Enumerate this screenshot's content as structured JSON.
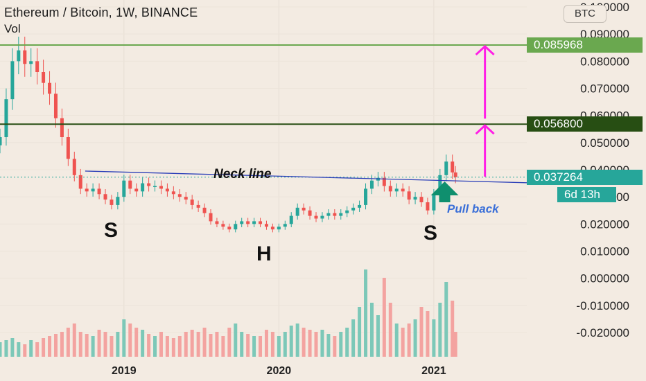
{
  "header": {
    "title": "Ethereum / Bitcoin, 1W, BINANCE",
    "sub": "Vol"
  },
  "currency_button": "BTC",
  "price_tags": [
    {
      "label": "0.085968",
      "color": "#6aa84f",
      "value": 0.085968
    },
    {
      "label": "0.056800",
      "color": "#274e13",
      "value": 0.0568
    },
    {
      "label": "0.037264",
      "color": "#26a69a",
      "value": 0.037264
    },
    {
      "label": "6d 13h",
      "color": "#26a69a"
    }
  ],
  "annotations": {
    "neckline": "Neck line",
    "pullback": "Pull back",
    "shoulder_left": "S",
    "head": "H",
    "shoulder_right": "S"
  },
  "chart_data": {
    "type": "candlestick",
    "title": "Ethereum / Bitcoin, 1W, BINANCE",
    "y_axis_ticks": [
      "0.100000",
      "0.090000",
      "0.080000",
      "0.070000",
      "0.060000",
      "0.050000",
      "0.040000",
      "0.030000",
      "0.020000",
      "0.010000",
      "0.000000",
      "-0.010000",
      "-0.020000"
    ],
    "y_tick_values": [
      0.1,
      0.09,
      0.08,
      0.07,
      0.06,
      0.05,
      0.04,
      0.03,
      0.02,
      0.01,
      0,
      -0.01,
      -0.02
    ],
    "x_axis_ticks": [
      "2019",
      "2020",
      "2021"
    ],
    "x_tick_values": [
      2019,
      2020,
      2021
    ],
    "xlim": [
      2018.2,
      2021.6
    ],
    "ylim": [
      -0.028,
      0.103
    ],
    "series": [
      {
        "name": "close",
        "points": [
          [
            2018.2,
            0.052
          ],
          [
            2018.24,
            0.066
          ],
          [
            2018.28,
            0.08
          ],
          [
            2018.32,
            0.084
          ],
          [
            2018.36,
            0.079
          ],
          [
            2018.4,
            0.08
          ],
          [
            2018.44,
            0.076
          ],
          [
            2018.48,
            0.072
          ],
          [
            2018.52,
            0.068
          ],
          [
            2018.56,
            0.059
          ],
          [
            2018.6,
            0.052
          ],
          [
            2018.64,
            0.044
          ],
          [
            2018.68,
            0.038
          ],
          [
            2018.72,
            0.033
          ],
          [
            2018.76,
            0.032
          ],
          [
            2018.8,
            0.033
          ],
          [
            2018.84,
            0.031
          ],
          [
            2018.88,
            0.029
          ],
          [
            2018.92,
            0.027
          ],
          [
            2018.96,
            0.03
          ],
          [
            2019.0,
            0.036
          ],
          [
            2019.04,
            0.033
          ],
          [
            2019.08,
            0.032
          ],
          [
            2019.12,
            0.035
          ],
          [
            2019.16,
            0.034
          ],
          [
            2019.2,
            0.034
          ],
          [
            2019.24,
            0.033
          ],
          [
            2019.28,
            0.032
          ],
          [
            2019.32,
            0.031
          ],
          [
            2019.36,
            0.03
          ],
          [
            2019.4,
            0.029
          ],
          [
            2019.44,
            0.027
          ],
          [
            2019.48,
            0.026
          ],
          [
            2019.52,
            0.024
          ],
          [
            2019.56,
            0.021
          ],
          [
            2019.6,
            0.02
          ],
          [
            2019.64,
            0.019
          ],
          [
            2019.68,
            0.018
          ],
          [
            2019.72,
            0.02
          ],
          [
            2019.76,
            0.021
          ],
          [
            2019.8,
            0.02
          ],
          [
            2019.84,
            0.021
          ],
          [
            2019.88,
            0.02
          ],
          [
            2019.92,
            0.019
          ],
          [
            2019.96,
            0.018
          ],
          [
            2020.0,
            0.019
          ],
          [
            2020.04,
            0.02
          ],
          [
            2020.08,
            0.023
          ],
          [
            2020.12,
            0.026
          ],
          [
            2020.16,
            0.025
          ],
          [
            2020.2,
            0.023
          ],
          [
            2020.24,
            0.022
          ],
          [
            2020.28,
            0.023
          ],
          [
            2020.32,
            0.024
          ],
          [
            2020.36,
            0.023
          ],
          [
            2020.4,
            0.024
          ],
          [
            2020.44,
            0.025
          ],
          [
            2020.48,
            0.026
          ],
          [
            2020.52,
            0.027
          ],
          [
            2020.56,
            0.033
          ],
          [
            2020.6,
            0.036
          ],
          [
            2020.64,
            0.037
          ],
          [
            2020.68,
            0.034
          ],
          [
            2020.72,
            0.032
          ],
          [
            2020.76,
            0.033
          ],
          [
            2020.8,
            0.032
          ],
          [
            2020.84,
            0.029
          ],
          [
            2020.88,
            0.03
          ],
          [
            2020.92,
            0.028
          ],
          [
            2020.96,
            0.025
          ],
          [
            2021.0,
            0.031
          ],
          [
            2021.04,
            0.038
          ],
          [
            2021.08,
            0.043
          ],
          [
            2021.12,
            0.039
          ],
          [
            2021.14,
            0.037264
          ]
        ]
      },
      {
        "name": "volume",
        "values": [
          0.7,
          0.8,
          0.9,
          0.7,
          0.6,
          0.8,
          0.7,
          0.9,
          1.0,
          1.1,
          1.2,
          1.4,
          1.6,
          1.2,
          1.1,
          1.0,
          1.3,
          1.2,
          1.0,
          1.2,
          1.8,
          1.6,
          1.4,
          1.3,
          1.1,
          1.0,
          1.2,
          1.0,
          0.9,
          1.0,
          1.2,
          1.3,
          1.2,
          1.4,
          1.1,
          1.2,
          1.0,
          1.4,
          1.6,
          1.2,
          1.1,
          1.0,
          1.0,
          1.3,
          1.2,
          1.0,
          1.2,
          1.5,
          1.6,
          1.4,
          1.3,
          1.2,
          1.3,
          1.1,
          1.0,
          1.2,
          1.4,
          1.8,
          2.4,
          4.2,
          2.6,
          2.0,
          3.8,
          2.6,
          1.6,
          1.4,
          1.6,
          1.8,
          2.4,
          2.2,
          1.8,
          2.6,
          3.6,
          2.7,
          1.2
        ]
      }
    ],
    "levels": [
      {
        "value": 0.085968,
        "color": "#6aa84f"
      },
      {
        "value": 0.0568,
        "color": "#274e13"
      },
      {
        "value": 0.037264,
        "color": "#26a69a"
      }
    ],
    "neckline": {
      "from": [
        2018.75,
        0.0395
      ],
      "to": [
        2021.6,
        0.0352
      ]
    }
  }
}
